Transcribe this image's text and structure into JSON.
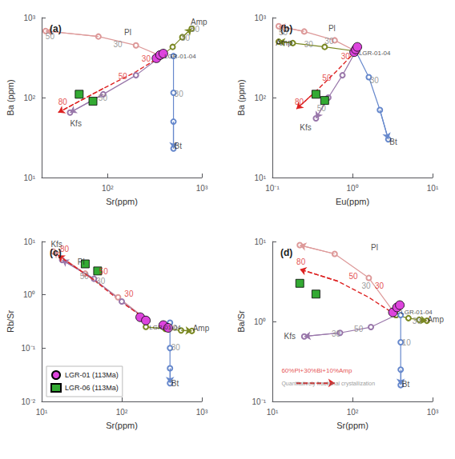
{
  "chart_data": [
    {
      "type": "line",
      "title": "(a)",
      "xlabel": "Sr(ppm)",
      "ylabel": "Ba (ppm)",
      "log": true,
      "grid": false,
      "xlim": [
        20,
        1000
      ],
      "ylim": [
        10,
        1000
      ],
      "xticks": [
        {
          "value": 100,
          "label": "10²"
        },
        {
          "value": 1000,
          "label": "10³"
        }
      ],
      "yticks": [
        {
          "value": 10,
          "label": "10¹"
        },
        {
          "value": 100,
          "label": "10²"
        },
        {
          "value": 1000,
          "label": "10³"
        }
      ],
      "series": [
        {
          "type": "line",
          "color": "#dd9999",
          "marker": "circle_open",
          "line_style": "solid",
          "x": [
            370,
            200,
            80,
            22
          ],
          "values": [
            330,
            450,
            580,
            680
          ]
        },
        {
          "type": "line",
          "color": "#7a8822",
          "marker": "circle_open",
          "line_style": "solid",
          "x": [
            370,
            490,
            620,
            780
          ],
          "values": [
            330,
            430,
            570,
            730
          ]
        },
        {
          "type": "line",
          "color": "#6688cc",
          "marker": "circle_open",
          "line_style": "solid",
          "x": [
            500,
            500,
            500,
            500
          ],
          "values": [
            330,
            115,
            50,
            23
          ]
        },
        {
          "type": "line",
          "color": "#9977aa",
          "marker": "circle_open",
          "line_style": "solid",
          "x": [
            370,
            200,
            90,
            40
          ],
          "values": [
            330,
            190,
            110,
            65
          ]
        },
        {
          "type": "line",
          "color": "#dd2222",
          "marker": "none",
          "line_style": "dashed",
          "x": [
            370,
            200,
            90,
            30
          ],
          "values": [
            330,
            210,
            130,
            65
          ]
        },
        {
          "name": "LGR-01 (113Ma)",
          "type": "scatter",
          "color": "#dd44dd",
          "marker": "circle",
          "x": [
            330,
            360,
            390
          ],
          "values": [
            310,
            340,
            355
          ]
        },
        {
          "name": "LGR-06 (113Ma)",
          "type": "scatter",
          "color": "#33aa33",
          "marker": "square",
          "x": [
            50,
            70
          ],
          "values": [
            110,
            90
          ]
        }
      ],
      "annotations": [
        {
          "text": "Pl",
          "x": 150,
          "y": 580
        },
        {
          "text": "50",
          "x": 22,
          "y": 520,
          "color": "gray"
        },
        {
          "text": "30",
          "x": 115,
          "y": 410,
          "color": "gray"
        },
        {
          "text": "Amp",
          "x": 760,
          "y": 780
        },
        {
          "text": "50",
          "x": 760,
          "y": 640,
          "color": "gray"
        },
        {
          "text": "30",
          "x": 600,
          "y": 490,
          "color": "gray"
        },
        {
          "text": "Bt",
          "x": 510,
          "y": 22
        },
        {
          "text": "30",
          "x": 510,
          "y": 100,
          "color": "gray"
        },
        {
          "text": "Kfs",
          "x": 40,
          "y": 42
        },
        {
          "text": "50",
          "x": 80,
          "y": 88,
          "color": "gray"
        },
        {
          "text": "30",
          "x": 230,
          "y": 270,
          "color": "#dd2222"
        },
        {
          "text": "50",
          "x": 130,
          "y": 165,
          "color": "#dd2222"
        },
        {
          "text": "80",
          "x": 30,
          "y": 78,
          "color": "#dd2222"
        },
        {
          "text": "LGR-01-04",
          "x": 400,
          "y": 300
        }
      ]
    },
    {
      "type": "line",
      "title": "(b)",
      "xlabel": "Eu(ppm)",
      "ylabel": "Ba (ppm)",
      "log": true,
      "grid": false,
      "xlim": [
        0.1,
        10
      ],
      "ylim": [
        10,
        1000
      ],
      "xticks": [
        {
          "value": 0.1,
          "label": "10⁻¹"
        },
        {
          "value": 1,
          "label": "10⁰"
        },
        {
          "value": 10,
          "label": "10¹"
        }
      ],
      "yticks": [
        {
          "value": 10,
          "label": "10¹"
        },
        {
          "value": 100,
          "label": "10²"
        },
        {
          "value": 1000,
          "label": "10³"
        }
      ],
      "series": [
        {
          "type": "line",
          "color": "#dd9999",
          "marker": "circle_open",
          "line_style": "solid",
          "x": [
            1.1,
            0.6,
            0.25,
            0.12
          ],
          "values": [
            380,
            520,
            670,
            780
          ]
        },
        {
          "type": "line",
          "color": "#7a8822",
          "marker": "circle_open",
          "line_style": "solid",
          "x": [
            1.1,
            0.45,
            0.18,
            0.12
          ],
          "values": [
            380,
            430,
            480,
            500
          ]
        },
        {
          "type": "line",
          "color": "#6688cc",
          "marker": "circle_open",
          "line_style": "solid",
          "x": [
            1.1,
            1.6,
            2.2,
            2.8
          ],
          "values": [
            380,
            180,
            70,
            30
          ]
        },
        {
          "type": "line",
          "color": "#9977aa",
          "marker": "circle_open",
          "line_style": "solid",
          "x": [
            1.1,
            0.75,
            0.5,
            0.35
          ],
          "values": [
            380,
            190,
            100,
            55
          ]
        },
        {
          "type": "line",
          "color": "#dd2222",
          "marker": "none",
          "line_style": "dashed",
          "x": [
            1.1,
            0.65,
            0.35,
            0.2
          ],
          "values": [
            380,
            220,
            120,
            72
          ]
        },
        {
          "name": "LGR-01 (113Ma)",
          "type": "scatter",
          "color": "#dd44dd",
          "marker": "circle",
          "x": [
            1.05,
            1.1,
            1.15
          ],
          "values": [
            370,
            400,
            430
          ]
        },
        {
          "name": "LGR-06 (113Ma)",
          "type": "scatter",
          "color": "#33aa33",
          "marker": "square",
          "x": [
            0.35,
            0.45
          ],
          "values": [
            110,
            92
          ]
        }
      ],
      "annotations": [
        {
          "text": "Pl",
          "x": 0.5,
          "y": 650
        },
        {
          "text": "50",
          "x": 0.12,
          "y": 580,
          "color": "gray"
        },
        {
          "text": "30",
          "x": 0.45,
          "y": 450,
          "color": "gray"
        },
        {
          "text": "Amp",
          "x": 0.11,
          "y": 430
        },
        {
          "text": "30",
          "x": 0.25,
          "y": 410,
          "color": "gray"
        },
        {
          "text": "Bt",
          "x": 2.9,
          "y": 25
        },
        {
          "text": "30",
          "x": 1.65,
          "y": 145,
          "color": "gray"
        },
        {
          "text": "Kfs",
          "x": 0.22,
          "y": 38
        },
        {
          "text": "50",
          "x": 0.36,
          "y": 65,
          "color": "gray"
        },
        {
          "text": "30",
          "x": 0.72,
          "y": 290,
          "color": "#dd2222"
        },
        {
          "text": "50",
          "x": 0.42,
          "y": 155,
          "color": "#dd2222"
        },
        {
          "text": "80",
          "x": 0.19,
          "y": 78,
          "color": "#dd2222"
        },
        {
          "text": "LGR-01-04",
          "x": 1.2,
          "y": 330
        }
      ]
    },
    {
      "type": "line",
      "title": "(c)",
      "xlabel": "Sr(ppm)",
      "ylabel": "Rb/Sr",
      "log": true,
      "grid": false,
      "legend": "lower left",
      "xlim": [
        10,
        1000
      ],
      "ylim": [
        0.01,
        10
      ],
      "xticks": [
        {
          "value": 10,
          "label": "10¹"
        },
        {
          "value": 100,
          "label": "10²"
        },
        {
          "value": 1000,
          "label": "10³"
        }
      ],
      "yticks": [
        {
          "value": 0.01,
          "label": "10⁻²"
        },
        {
          "value": 0.1,
          "label": "10⁻¹"
        },
        {
          "value": 1,
          "label": "10⁰"
        },
        {
          "value": 10,
          "label": "10¹"
        }
      ],
      "series": [
        {
          "type": "line",
          "color": "#dd9999",
          "marker": "circle_open",
          "line_style": "solid",
          "x": [
            200,
            90,
            35,
            14
          ],
          "values": [
            0.35,
            0.9,
            2.5,
            6.5
          ]
        },
        {
          "type": "line",
          "color": "#9977aa",
          "marker": "circle_open",
          "line_style": "solid",
          "x": [
            200,
            100,
            45,
            18
          ],
          "values": [
            0.35,
            0.75,
            2.0,
            4.5
          ]
        },
        {
          "type": "line",
          "color": "#7a8822",
          "marker": "circle_open",
          "line_style": "solid",
          "x": [
            200,
            350,
            550,
            750
          ],
          "values": [
            0.25,
            0.23,
            0.215,
            0.21
          ]
        },
        {
          "type": "line",
          "color": "#6688cc",
          "marker": "circle_open",
          "line_style": "solid",
          "x": [
            400,
            400,
            400,
            400
          ],
          "values": [
            0.3,
            0.1,
            0.042,
            0.022
          ]
        },
        {
          "type": "line",
          "color": "#dd2222",
          "marker": "none",
          "line_style": "dashed",
          "x": [
            200,
            100,
            45,
            16
          ],
          "values": [
            0.35,
            0.72,
            1.9,
            5.5
          ]
        },
        {
          "name": "LGR-01 (113Ma)",
          "type": "scatter",
          "color": "#dd44dd",
          "marker": "circle",
          "x": [
            170,
            200,
            330,
            380
          ],
          "values": [
            0.38,
            0.33,
            0.27,
            0.24
          ]
        },
        {
          "name": "LGR-06 (113Ma)",
          "type": "scatter",
          "color": "#33aa33",
          "marker": "square",
          "x": [
            35,
            50
          ],
          "values": [
            3.8,
            2.8
          ]
        }
      ],
      "annotations": [
        {
          "text": "Kfs",
          "x": 13,
          "y": 7.5
        },
        {
          "text": "50",
          "x": 30,
          "y": 1.9,
          "color": "gray"
        },
        {
          "text": "Pl",
          "x": 28,
          "y": 3.5
        },
        {
          "text": "30",
          "x": 48,
          "y": 1.5,
          "color": "gray"
        },
        {
          "text": "Amp",
          "x": 770,
          "y": 0.2
        },
        {
          "text": "30",
          "x": 380,
          "y": 0.195,
          "color": "gray"
        },
        {
          "text": "Bt",
          "x": 415,
          "y": 0.018
        },
        {
          "text": "30",
          "x": 415,
          "y": 0.087,
          "color": "gray"
        },
        {
          "text": "30",
          "x": 108,
          "y": 0.88,
          "color": "#dd2222"
        },
        {
          "text": "50",
          "x": 52,
          "y": 2.3,
          "color": "#dd2222"
        },
        {
          "text": "80",
          "x": 17,
          "y": 6.0,
          "color": "#dd2222"
        },
        {
          "text": "LGR-01-04",
          "x": 220,
          "y": 0.21
        }
      ]
    },
    {
      "type": "line",
      "title": "(d)",
      "xlabel": "Sr(ppm)",
      "ylabel": "Ba/Sr",
      "log": true,
      "grid": false,
      "xlim": [
        10,
        1000
      ],
      "ylim": [
        0.1,
        10
      ],
      "xticks": [
        {
          "value": 10,
          "label": "10¹"
        },
        {
          "value": 100,
          "label": "10²"
        },
        {
          "value": 1000,
          "label": "10³"
        }
      ],
      "yticks": [
        {
          "value": 0.1,
          "label": "10⁻¹"
        },
        {
          "value": 1,
          "label": "10⁰"
        },
        {
          "value": 10,
          "label": "10¹"
        }
      ],
      "series": [
        {
          "type": "line",
          "color": "#dd9999",
          "marker": "circle_open",
          "line_style": "solid",
          "x": [
            350,
            160,
            60,
            22
          ],
          "values": [
            1.2,
            3.5,
            7.0,
            9.0
          ]
        },
        {
          "type": "line",
          "color": "#9977aa",
          "marker": "circle_open",
          "line_style": "solid",
          "x": [
            350,
            170,
            70,
            25
          ],
          "values": [
            1.2,
            0.85,
            0.72,
            0.65
          ]
        },
        {
          "type": "line",
          "color": "#7a8822",
          "marker": "circle_open",
          "line_style": "solid",
          "x": [
            350,
            500,
            680,
            850
          ],
          "values": [
            1.2,
            1.1,
            1.05,
            1.02
          ]
        },
        {
          "type": "line",
          "color": "#6688cc",
          "marker": "circle_open",
          "line_style": "solid",
          "x": [
            400,
            400,
            400,
            400
          ],
          "values": [
            1.2,
            0.55,
            0.25,
            0.16
          ]
        },
        {
          "type": "line",
          "color": "#dd2222",
          "marker": "none",
          "line_style": "dashed",
          "x": [
            350,
            160,
            65,
            22
          ],
          "values": [
            1.2,
            2.0,
            3.2,
            4.5
          ]
        },
        {
          "type": "line",
          "color": "#dd2222",
          "marker": "none",
          "line_style": "dashed",
          "x": [
            20,
            60
          ],
          "values": [
            0.17,
            0.17
          ]
        },
        {
          "name": "LGR-01 (113Ma)",
          "type": "scatter",
          "color": "#dd44dd",
          "marker": "circle",
          "x": [
            320,
            360,
            390
          ],
          "values": [
            1.3,
            1.5,
            1.6
          ]
        },
        {
          "name": "LGR-06 (113Ma)",
          "type": "scatter",
          "color": "#33aa33",
          "marker": "square",
          "x": [
            22,
            35
          ],
          "values": [
            3.0,
            2.2
          ]
        }
      ],
      "annotations": [
        {
          "text": "Pl",
          "x": 170,
          "y": 7.5
        },
        {
          "text": "30",
          "x": 130,
          "y": 2.5,
          "color": "gray"
        },
        {
          "text": "Kfs",
          "x": 14,
          "y": 0.58
        },
        {
          "text": "50",
          "x": 105,
          "y": 0.72,
          "color": "gray"
        },
        {
          "text": "30",
          "x": 55,
          "y": 0.63,
          "color": "gray"
        },
        {
          "text": "Amp",
          "x": 860,
          "y": 0.95
        },
        {
          "text": "30",
          "x": 560,
          "y": 0.9,
          "color": "gray"
        },
        {
          "text": "Bt",
          "x": 415,
          "y": 0.145
        },
        {
          "text": "10",
          "x": 415,
          "y": 0.48,
          "color": "gray"
        },
        {
          "text": "30",
          "x": 190,
          "y": 2.5,
          "color": "#dd2222"
        },
        {
          "text": "50",
          "x": 90,
          "y": 3.3,
          "color": "#dd2222"
        },
        {
          "text": "80",
          "x": 20,
          "y": 5.0,
          "color": "#dd2222"
        },
        {
          "text": "LGR-01-04",
          "x": 400,
          "y": 1.2
        },
        {
          "text": "60%Pl+30%Bi+10%Amp",
          "x": 13,
          "y": 0.22,
          "color": "#dd2222"
        },
        {
          "text": "Quantitatively fractional crystallization",
          "x": 13,
          "y": 0.155,
          "color": "gray"
        }
      ]
    }
  ]
}
